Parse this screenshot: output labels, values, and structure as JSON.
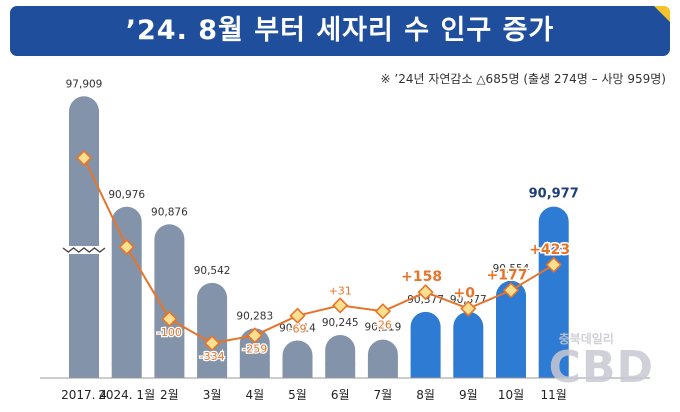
{
  "header": {
    "title": "’24. 8월 부터 세자리 수 인구 증가"
  },
  "note": {
    "text": "※ ’24년 자연감소 △685명 (출생 274명 – 사망 959명)"
  },
  "watermark": {
    "sub": "충북데일리",
    "logo": "CBD"
  },
  "colors": {
    "banner": "#1f4f9c",
    "bar_gray": "#8394aa",
    "bar_blue": "#2e7bd4",
    "line": "#e8742a",
    "marker_fill": "#fbe08f",
    "change_text": "#e8742a"
  },
  "chart_data": {
    "type": "bar",
    "categories": [
      "2017. 4",
      "2024. 1월",
      "2월",
      "3월",
      "4월",
      "5월",
      "6월",
      "7월",
      "8월",
      "9월",
      "10월",
      "11월"
    ],
    "series": [
      {
        "values": [
          97909,
          90976,
          90876,
          90542,
          90283,
          90214,
          90245,
          90219,
          90377,
          90377,
          90554,
          90977
        ]
      }
    ],
    "value_labels": [
      "97,909",
      "90,976",
      "90,876",
      "90,542",
      "90,283",
      "90,214",
      "90,245",
      "90,219",
      "90,377",
      "90,377",
      "90,554",
      "90,977"
    ],
    "bar_colors": [
      "gray",
      "gray",
      "gray",
      "gray",
      "gray",
      "gray",
      "gray",
      "gray",
      "blue",
      "blue",
      "blue",
      "blue"
    ],
    "change_line": {
      "values": [
        null,
        null,
        -100,
        -334,
        -259,
        -69,
        31,
        -26,
        158,
        0,
        177,
        423
      ],
      "labels": [
        "",
        "",
        "-100",
        "-334",
        "-259",
        "-69",
        "+31",
        "-26",
        "+158",
        "+0",
        "+177",
        "+423"
      ]
    },
    "axis_break": true
  }
}
